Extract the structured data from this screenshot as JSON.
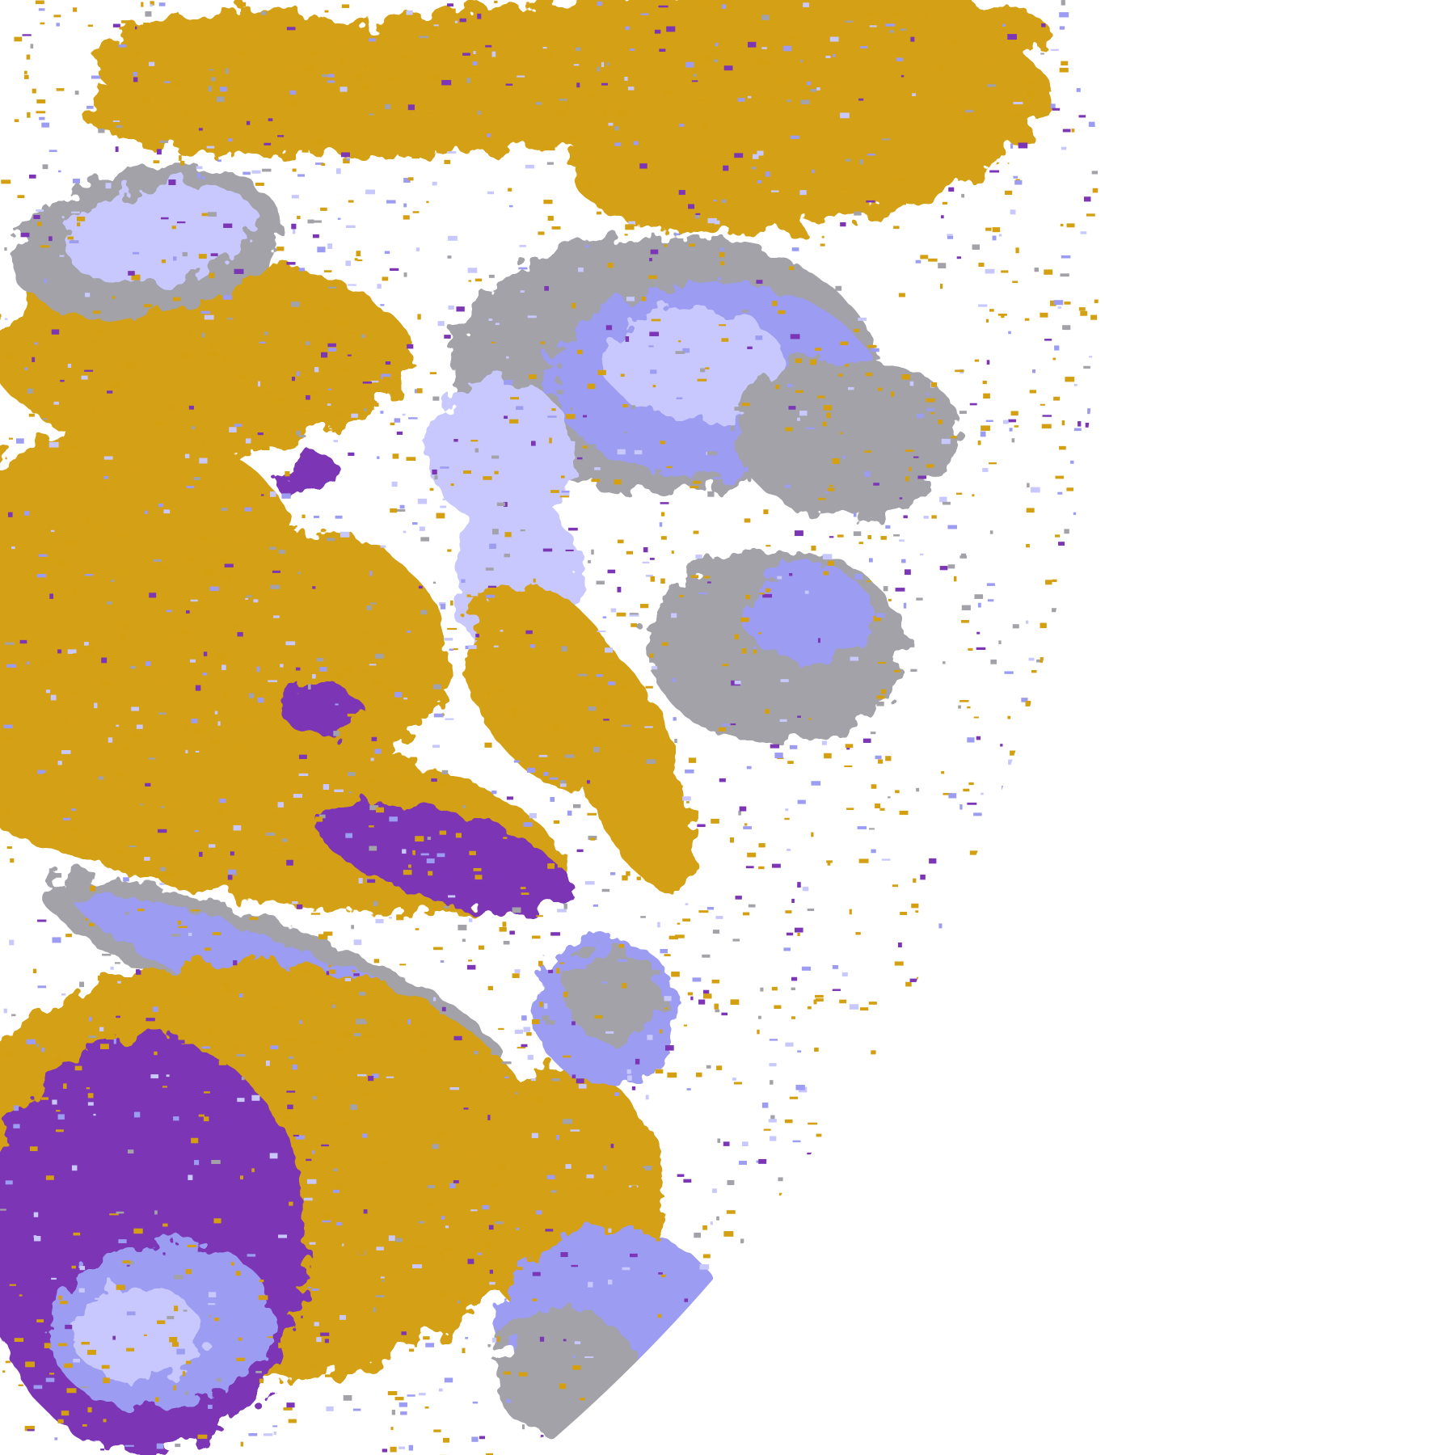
{
  "image": {
    "background": "#ffffff",
    "palette": {
      "gold": "#d4a012",
      "purple": "#7b35b5",
      "lavender": "#c8c8ff",
      "periwinkle": "#9c9cf2",
      "gray": "#a2a2a8",
      "magenta": "#d060e0",
      "pale": "#ececff"
    }
  }
}
